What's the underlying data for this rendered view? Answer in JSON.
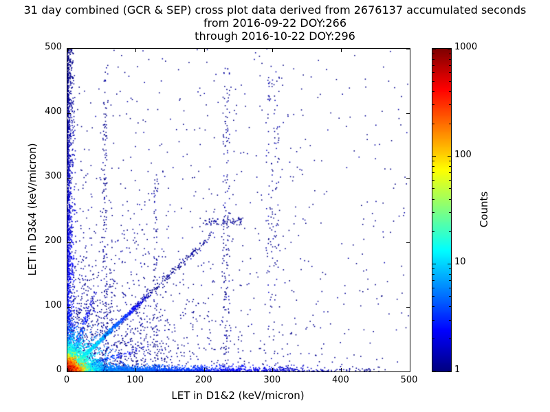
{
  "chart_data": {
    "type": "scatter",
    "title_lines": [
      "31 day combined (GCR & SEP) cross plot data derived from 2676137 accumulated seconds",
      "from 2016-09-22 DOY:266",
      "through 2016-10-22 DOY:296"
    ],
    "xlabel": "LET in D1&2 (keV/micron)",
    "ylabel": "LET in D3&4 (keV/micron)",
    "xlim": [
      0,
      500
    ],
    "ylim": [
      0,
      500
    ],
    "xticks": [
      0,
      100,
      200,
      300,
      400,
      500
    ],
    "yticks": [
      0,
      100,
      200,
      300,
      400,
      500
    ],
    "grid": false,
    "background": "#ffffff",
    "colorbar": {
      "label": "Counts",
      "scale": "log",
      "min": 1,
      "max": 1000,
      "ticks": [
        1000,
        100,
        10,
        1
      ],
      "colormap": "jet"
    },
    "seed": 42,
    "marker_px": 1.6,
    "point_groups": [
      {
        "name": "uniform-sparse",
        "n": 480,
        "x": {
          "type": "uniform",
          "min": 0,
          "max": 500
        },
        "y": {
          "type": "uniform",
          "min": 0,
          "max": 500
        },
        "level": {
          "min": 0.0,
          "max": 0.05
        },
        "level_mode": "random"
      },
      {
        "name": "mid-scatter",
        "n": 1500,
        "x": {
          "type": "exp",
          "scale": 85,
          "max": 500
        },
        "y": {
          "type": "exp",
          "scale": 85,
          "max": 500
        },
        "level": {
          "min": 0.0,
          "max": 0.07
        },
        "level_mode": "random"
      },
      {
        "name": "left-column",
        "n": 1300,
        "x": {
          "type": "exp",
          "scale": 3,
          "max": 12
        },
        "y": {
          "type": "uniform",
          "min": 0,
          "max": 500
        },
        "level": {
          "min": 0.0,
          "max": 0.18
        },
        "level_mode": "radial",
        "radial_max": 520
      },
      {
        "name": "bottom-row",
        "n": 2400,
        "x": {
          "type": "exp",
          "scale": 115,
          "max": 465
        },
        "y": {
          "type": "exp",
          "scale": 3,
          "max": 12
        },
        "level": {
          "min": 0.0,
          "max": 0.3
        },
        "level_mode": "radial",
        "radial_max": 480
      },
      {
        "name": "diagonal-sparse",
        "n": 170,
        "diag": true,
        "slope": 1,
        "t": {
          "type": "uniform",
          "min": 95,
          "max": 215
        },
        "jitter": 4,
        "level": {
          "min": 0.0,
          "max": 0.08
        },
        "level_mode": "random"
      },
      {
        "name": "diagonal-streak",
        "n": 1200,
        "diag": true,
        "slope": 1,
        "t": {
          "type": "exp",
          "scale": 40,
          "max": 118
        },
        "jitter": 2.5,
        "level": {
          "min": 0.05,
          "max": 0.5
        },
        "level_mode": "radial",
        "radial_max": 175
      },
      {
        "name": "fan-steep",
        "n": 320,
        "diag": true,
        "slope": 3,
        "t": {
          "type": "exp",
          "scale": 14,
          "max": 42
        },
        "jitter": 2.5,
        "level": {
          "min": 0.05,
          "max": 0.32
        },
        "level_mode": "radial",
        "radial_max": 140
      },
      {
        "name": "fan-shallow",
        "n": 320,
        "diag": true,
        "slope": 0.33,
        "t": {
          "type": "exp",
          "scale": 30,
          "max": 125
        },
        "jitter": 2.5,
        "level": {
          "min": 0.05,
          "max": 0.3
        },
        "level_mode": "radial",
        "radial_max": 140
      },
      {
        "name": "origin-mid",
        "n": 2300,
        "x": {
          "type": "exp",
          "scale": 16,
          "max": 100
        },
        "y": {
          "type": "exp",
          "scale": 16,
          "max": 100
        },
        "level": {
          "min": 0.05,
          "max": 0.55
        },
        "level_mode": "radial",
        "radial_max": 120
      },
      {
        "name": "origin-core",
        "n": 2800,
        "x": {
          "type": "exp",
          "scale": 5,
          "max": 45
        },
        "y": {
          "type": "exp",
          "scale": 5,
          "max": 45
        },
        "level": {
          "min": 0.3,
          "max": 1.0
        },
        "level_mode": "radial",
        "radial_max": 55
      },
      {
        "name": "vertical-55",
        "n": 140,
        "x": {
          "type": "uniform",
          "min": 52,
          "max": 58
        },
        "y": {
          "type": "uniform",
          "min": 0,
          "max": 455
        },
        "level": {
          "min": 0.0,
          "max": 0.08
        },
        "level_mode": "random"
      },
      {
        "name": "vertical-130",
        "n": 75,
        "x": {
          "type": "uniform",
          "min": 126,
          "max": 132
        },
        "y": {
          "type": "uniform",
          "min": 0,
          "max": 300
        },
        "level": {
          "min": 0.0,
          "max": 0.08
        },
        "level_mode": "random"
      },
      {
        "name": "vertical-232",
        "n": 150,
        "x": {
          "type": "uniform",
          "min": 227,
          "max": 237
        },
        "y": {
          "type": "uniform",
          "min": 0,
          "max": 470
        },
        "level": {
          "min": 0.0,
          "max": 0.08
        },
        "level_mode": "random"
      },
      {
        "name": "vertical-300",
        "n": 120,
        "x": {
          "type": "uniform",
          "min": 290,
          "max": 310
        },
        "y": {
          "type": "uniform",
          "min": 60,
          "max": 465
        },
        "level": {
          "min": 0.0,
          "max": 0.08
        },
        "level_mode": "random"
      },
      {
        "name": "horizontal-230",
        "n": 70,
        "x": {
          "type": "uniform",
          "min": 200,
          "max": 255
        },
        "y": {
          "type": "uniform",
          "min": 227,
          "max": 237
        },
        "level": {
          "min": 0.0,
          "max": 0.08
        },
        "level_mode": "random"
      }
    ]
  }
}
